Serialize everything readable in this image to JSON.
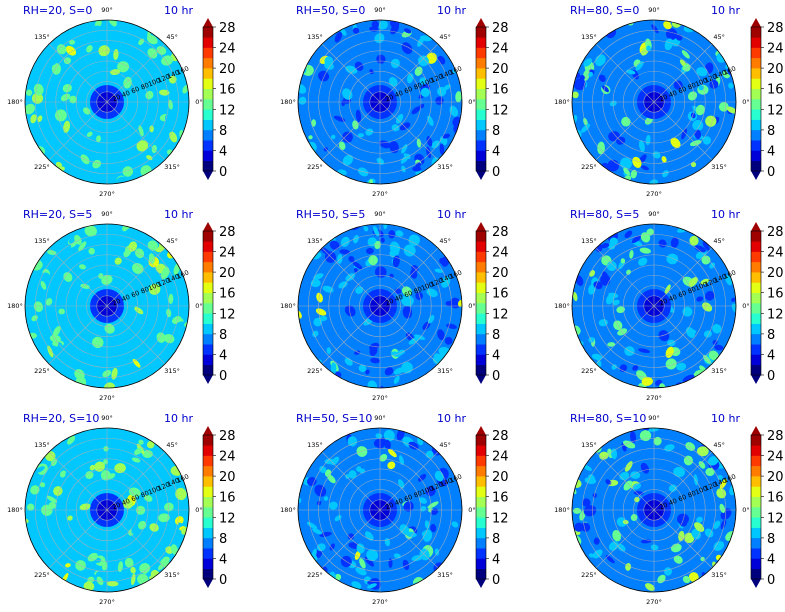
{
  "chart_data": [
    {
      "type": "heatmap",
      "kind": "polar-contour",
      "title_left": "RH=20, S=0",
      "title_right": "10 hr",
      "rh": 20,
      "s": 0
    },
    {
      "type": "heatmap",
      "kind": "polar-contour",
      "title_left": "RH=50, S=0",
      "title_right": "10 hr",
      "rh": 50,
      "s": 0
    },
    {
      "type": "heatmap",
      "kind": "polar-contour",
      "title_left": "RH=80, S=0",
      "title_right": "10 hr",
      "rh": 80,
      "s": 0
    },
    {
      "type": "heatmap",
      "kind": "polar-contour",
      "title_left": "RH=20, S=5",
      "title_right": "10 hr",
      "rh": 20,
      "s": 5
    },
    {
      "type": "heatmap",
      "kind": "polar-contour",
      "title_left": "RH=50, S=5",
      "title_right": "10 hr",
      "rh": 50,
      "s": 5
    },
    {
      "type": "heatmap",
      "kind": "polar-contour",
      "title_left": "RH=80, S=5",
      "title_right": "10 hr",
      "rh": 80,
      "s": 5
    },
    {
      "type": "heatmap",
      "kind": "polar-contour",
      "title_left": "RH=20, S=10",
      "title_right": "10 hr",
      "rh": 20,
      "s": 10
    },
    {
      "type": "heatmap",
      "kind": "polar-contour",
      "title_left": "RH=50, S=10",
      "title_right": "10 hr",
      "rh": 50,
      "s": 10
    },
    {
      "type": "heatmap",
      "kind": "polar-contour",
      "title_left": "RH=80, S=10",
      "title_right": "10 hr",
      "rh": 80,
      "s": 10
    }
  ],
  "shared": {
    "angle_ticks": [
      "0°",
      "45°",
      "90°",
      "135°",
      "180°",
      "225°",
      "270°",
      "315°"
    ],
    "radial_ticks": [
      "20",
      "40",
      "60",
      "80",
      "100",
      "120",
      "140",
      "160"
    ],
    "rlim": [
      0,
      160
    ],
    "colorbar": {
      "ticks": [
        "0",
        "4",
        "8",
        "12",
        "16",
        "20",
        "24",
        "28"
      ],
      "levels": [
        0,
        2,
        4,
        6,
        8,
        10,
        12,
        14,
        16,
        18,
        20,
        22,
        24,
        26,
        28
      ],
      "colors": [
        "#00007f",
        "#0000d9",
        "#0033ff",
        "#0080ff",
        "#00c8ff",
        "#27ffd1",
        "#65ff92",
        "#a3ff53",
        "#e2ff14",
        "#ffbf00",
        "#ff7c00",
        "#ff3a00",
        "#e30000",
        "#9f0000"
      ],
      "extend": "both"
    }
  }
}
